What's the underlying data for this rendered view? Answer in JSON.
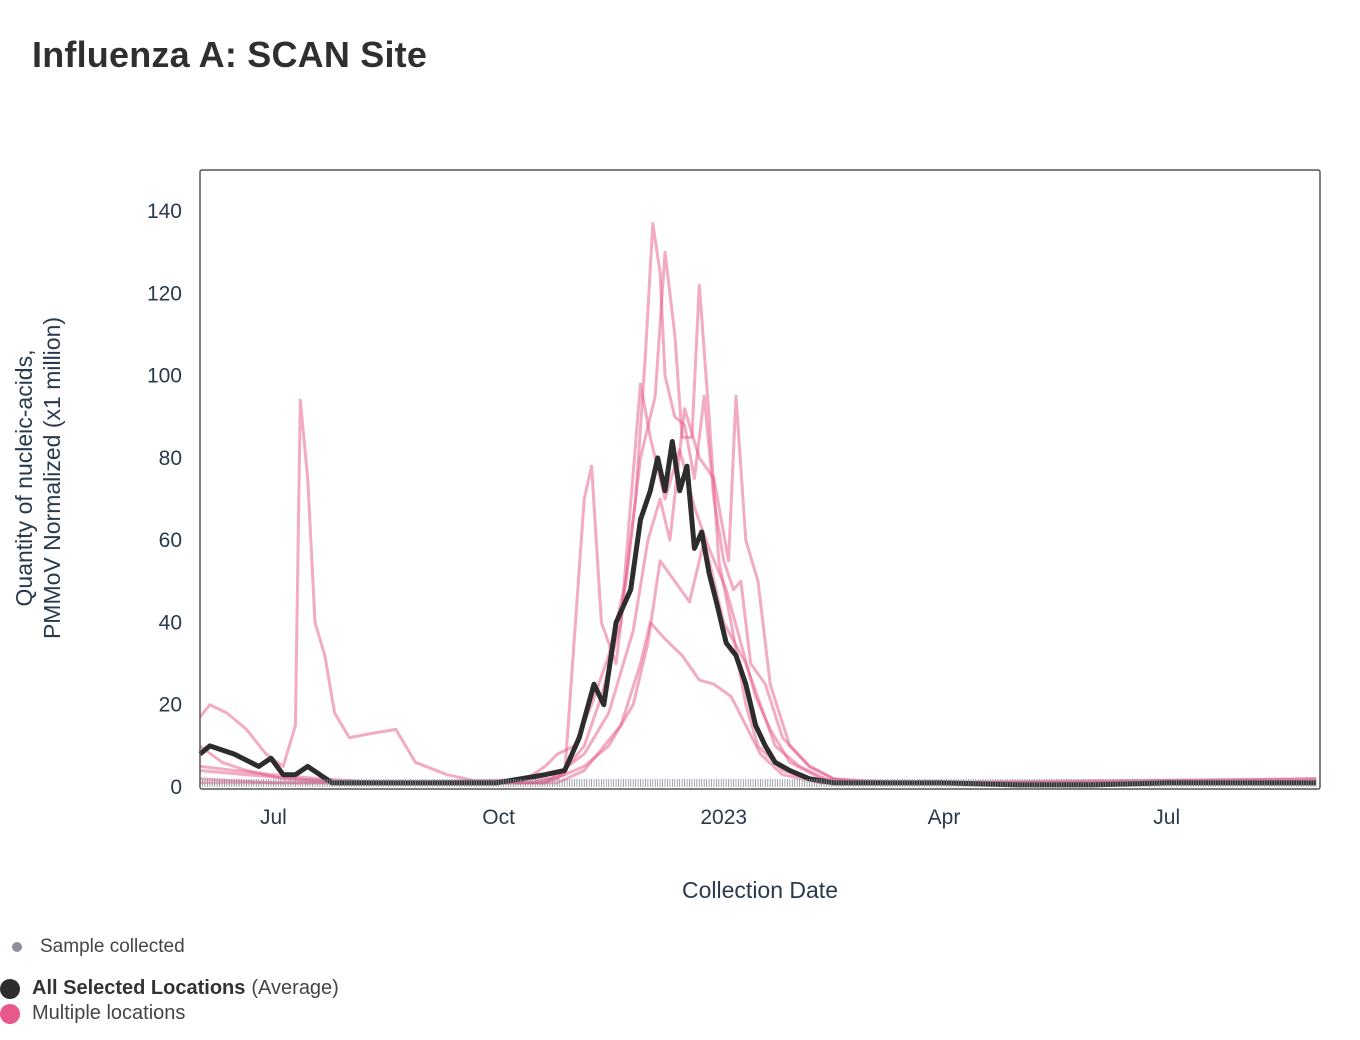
{
  "title": "Influenza A: SCAN Site",
  "colors": {
    "average": "#2d2d2d",
    "locations": "#e8588a",
    "sample_marker": "#8a8f99",
    "axis_text": "#2a3a4e"
  },
  "legend": {
    "sample_label": "Sample collected",
    "average_label_bold": "All Selected Locations",
    "average_label_suffix": "(Average)",
    "multi_label": "Multiple locations"
  },
  "chart_data": {
    "type": "line",
    "xlabel": "Collection Date",
    "ylabel_line1": "Quantity of nucleic-acids,",
    "ylabel_line2": "PMMoV Normalized (x1 million)",
    "xlim": [
      "2022-06-01",
      "2023-08-31"
    ],
    "ylim": [
      0,
      150
    ],
    "y_ticks": [
      0,
      20,
      40,
      60,
      80,
      100,
      120,
      140
    ],
    "x_ticks": [
      {
        "date": "2022-07-01",
        "label": "Jul"
      },
      {
        "date": "2022-10-01",
        "label": "Oct"
      },
      {
        "date": "2023-01-01",
        "label": "2023"
      },
      {
        "date": "2023-04-01",
        "label": "Apr"
      },
      {
        "date": "2023-07-01",
        "label": "Jul"
      }
    ],
    "grid": false,
    "legend_position": "bottom-left",
    "series": [
      {
        "name": "All Selected Locations",
        "kind": "average",
        "points": [
          [
            "2022-06-01",
            8
          ],
          [
            "2022-06-05",
            10
          ],
          [
            "2022-06-15",
            8
          ],
          [
            "2022-06-25",
            5
          ],
          [
            "2022-06-30",
            7
          ],
          [
            "2022-07-05",
            3
          ],
          [
            "2022-07-10",
            3
          ],
          [
            "2022-07-15",
            5
          ],
          [
            "2022-07-20",
            3
          ],
          [
            "2022-07-25",
            1
          ],
          [
            "2022-08-10",
            1
          ],
          [
            "2022-09-01",
            1
          ],
          [
            "2022-09-30",
            1
          ],
          [
            "2022-10-10",
            2
          ],
          [
            "2022-10-20",
            3
          ],
          [
            "2022-10-28",
            4
          ],
          [
            "2022-11-03",
            12
          ],
          [
            "2022-11-09",
            25
          ],
          [
            "2022-11-13",
            20
          ],
          [
            "2022-11-18",
            40
          ],
          [
            "2022-11-24",
            48
          ],
          [
            "2022-11-28",
            65
          ],
          [
            "2022-12-02",
            72
          ],
          [
            "2022-12-05",
            80
          ],
          [
            "2022-12-08",
            72
          ],
          [
            "2022-12-11",
            84
          ],
          [
            "2022-12-14",
            72
          ],
          [
            "2022-12-17",
            78
          ],
          [
            "2022-12-20",
            58
          ],
          [
            "2022-12-23",
            62
          ],
          [
            "2022-12-26",
            52
          ],
          [
            "2022-12-29",
            45
          ],
          [
            "2023-01-02",
            35
          ],
          [
            "2023-01-06",
            32
          ],
          [
            "2023-01-10",
            25
          ],
          [
            "2023-01-14",
            15
          ],
          [
            "2023-01-18",
            10
          ],
          [
            "2023-01-22",
            6
          ],
          [
            "2023-01-28",
            4
          ],
          [
            "2023-02-05",
            2
          ],
          [
            "2023-02-15",
            1
          ],
          [
            "2023-03-01",
            1
          ],
          [
            "2023-04-01",
            1
          ],
          [
            "2023-05-01",
            0.5
          ],
          [
            "2023-06-01",
            0.5
          ],
          [
            "2023-07-01",
            1
          ],
          [
            "2023-08-31",
            1
          ]
        ]
      },
      {
        "name": "Multiple locations",
        "kind": "location",
        "points": [
          [
            "2022-06-01",
            17
          ],
          [
            "2022-06-05",
            20
          ],
          [
            "2022-06-12",
            18
          ],
          [
            "2022-06-20",
            14
          ],
          [
            "2022-06-28",
            8
          ],
          [
            "2022-07-05",
            5
          ],
          [
            "2022-07-10",
            15
          ],
          [
            "2022-07-12",
            94
          ],
          [
            "2022-07-15",
            75
          ],
          [
            "2022-07-18",
            40
          ],
          [
            "2022-07-22",
            32
          ],
          [
            "2022-07-26",
            18
          ],
          [
            "2022-08-01",
            12
          ],
          [
            "2022-08-10",
            13
          ],
          [
            "2022-08-20",
            14
          ],
          [
            "2022-08-28",
            6
          ],
          [
            "2022-09-10",
            3
          ],
          [
            "2022-09-25",
            1
          ],
          [
            "2022-10-10",
            1
          ],
          [
            "2022-10-20",
            5
          ],
          [
            "2022-10-25",
            8
          ],
          [
            "2022-11-01",
            10
          ],
          [
            "2022-11-08",
            20
          ],
          [
            "2022-11-15",
            32
          ],
          [
            "2022-11-22",
            50
          ],
          [
            "2022-11-26",
            70
          ],
          [
            "2022-11-30",
            105
          ],
          [
            "2022-12-03",
            137
          ],
          [
            "2022-12-06",
            125
          ],
          [
            "2022-12-08",
            100
          ],
          [
            "2022-12-12",
            90
          ],
          [
            "2022-12-16",
            88
          ],
          [
            "2022-12-20",
            75
          ],
          [
            "2022-12-24",
            95
          ],
          [
            "2022-12-28",
            70
          ],
          [
            "2023-01-01",
            55
          ],
          [
            "2023-01-05",
            48
          ],
          [
            "2023-01-08",
            50
          ],
          [
            "2023-01-12",
            30
          ],
          [
            "2023-01-18",
            25
          ],
          [
            "2023-01-25",
            12
          ],
          [
            "2023-02-05",
            5
          ],
          [
            "2023-02-15",
            2
          ],
          [
            "2023-03-01",
            1
          ],
          [
            "2023-05-01",
            1
          ],
          [
            "2023-08-31",
            2
          ]
        ]
      },
      {
        "name": "Multiple locations",
        "kind": "location",
        "points": [
          [
            "2022-06-01",
            10
          ],
          [
            "2022-06-10",
            6
          ],
          [
            "2022-06-20",
            4
          ],
          [
            "2022-07-05",
            2
          ],
          [
            "2022-08-01",
            1
          ],
          [
            "2022-10-15",
            1
          ],
          [
            "2022-10-28",
            3
          ],
          [
            "2022-11-05",
            70
          ],
          [
            "2022-11-08",
            78
          ],
          [
            "2022-11-12",
            40
          ],
          [
            "2022-11-18",
            30
          ],
          [
            "2022-11-28",
            80
          ],
          [
            "2022-12-04",
            95
          ],
          [
            "2022-12-08",
            130
          ],
          [
            "2022-12-12",
            110
          ],
          [
            "2022-12-15",
            85
          ],
          [
            "2022-12-19",
            85
          ],
          [
            "2022-12-22",
            122
          ],
          [
            "2022-12-26",
            90
          ],
          [
            "2022-12-30",
            55
          ],
          [
            "2023-01-04",
            40
          ],
          [
            "2023-01-10",
            20
          ],
          [
            "2023-01-15",
            10
          ],
          [
            "2023-01-25",
            4
          ],
          [
            "2023-02-10",
            1
          ],
          [
            "2023-04-01",
            1
          ],
          [
            "2023-08-31",
            1
          ]
        ]
      },
      {
        "name": "Multiple locations",
        "kind": "location",
        "points": [
          [
            "2022-06-01",
            4
          ],
          [
            "2022-06-20",
            3
          ],
          [
            "2022-07-10",
            2
          ],
          [
            "2022-08-01",
            1
          ],
          [
            "2022-10-20",
            1
          ],
          [
            "2022-11-05",
            8
          ],
          [
            "2022-11-15",
            18
          ],
          [
            "2022-11-25",
            38
          ],
          [
            "2022-12-01",
            60
          ],
          [
            "2022-12-06",
            70
          ],
          [
            "2022-12-10",
            60
          ],
          [
            "2022-12-16",
            92
          ],
          [
            "2022-12-22",
            80
          ],
          [
            "2022-12-28",
            75
          ],
          [
            "2023-01-03",
            55
          ],
          [
            "2023-01-06",
            95
          ],
          [
            "2023-01-10",
            60
          ],
          [
            "2023-01-15",
            50
          ],
          [
            "2023-01-20",
            25
          ],
          [
            "2023-01-28",
            10
          ],
          [
            "2023-02-05",
            5
          ],
          [
            "2023-02-15",
            2
          ],
          [
            "2023-03-15",
            1
          ],
          [
            "2023-08-31",
            1
          ]
        ]
      },
      {
        "name": "Multiple locations",
        "kind": "location",
        "points": [
          [
            "2022-06-01",
            2
          ],
          [
            "2022-07-01",
            1
          ],
          [
            "2022-10-20",
            1
          ],
          [
            "2022-11-05",
            5
          ],
          [
            "2022-11-15",
            10
          ],
          [
            "2022-11-25",
            20
          ],
          [
            "2022-12-01",
            35
          ],
          [
            "2022-12-06",
            55
          ],
          [
            "2022-12-12",
            50
          ],
          [
            "2022-12-18",
            45
          ],
          [
            "2022-12-24",
            60
          ],
          [
            "2023-01-01",
            40
          ],
          [
            "2023-01-10",
            30
          ],
          [
            "2023-01-16",
            20
          ],
          [
            "2023-01-22",
            10
          ],
          [
            "2023-02-01",
            5
          ],
          [
            "2023-02-15",
            1
          ],
          [
            "2023-08-31",
            1
          ]
        ]
      },
      {
        "name": "Multiple locations",
        "kind": "location",
        "points": [
          [
            "2022-06-01",
            1
          ],
          [
            "2022-08-01",
            1
          ],
          [
            "2022-10-25",
            1
          ],
          [
            "2022-11-05",
            4
          ],
          [
            "2022-11-20",
            15
          ],
          [
            "2022-11-28",
            30
          ],
          [
            "2022-12-02",
            40
          ],
          [
            "2022-12-08",
            36
          ],
          [
            "2022-12-15",
            32
          ],
          [
            "2022-12-22",
            26
          ],
          [
            "2022-12-28",
            25
          ],
          [
            "2023-01-04",
            22
          ],
          [
            "2023-01-10",
            15
          ],
          [
            "2023-01-16",
            8
          ],
          [
            "2023-01-25",
            3
          ],
          [
            "2023-02-10",
            1
          ],
          [
            "2023-08-31",
            1
          ]
        ]
      },
      {
        "name": "Multiple locations",
        "kind": "location",
        "points": [
          [
            "2022-06-01",
            5
          ],
          [
            "2022-06-15",
            4
          ],
          [
            "2022-07-01",
            3
          ],
          [
            "2022-07-20",
            2
          ],
          [
            "2022-08-15",
            1
          ],
          [
            "2022-10-25",
            2
          ],
          [
            "2022-11-05",
            10
          ],
          [
            "2022-11-12",
            22
          ],
          [
            "2022-11-20",
            40
          ],
          [
            "2022-11-28",
            98
          ],
          [
            "2022-12-02",
            85
          ],
          [
            "2022-12-08",
            70
          ],
          [
            "2022-12-14",
            82
          ],
          [
            "2022-12-20",
            68
          ],
          [
            "2022-12-26",
            58
          ],
          [
            "2023-01-02",
            48
          ],
          [
            "2023-01-08",
            35
          ],
          [
            "2023-01-14",
            22
          ],
          [
            "2023-01-20",
            14
          ],
          [
            "2023-01-28",
            6
          ],
          [
            "2023-02-10",
            2
          ],
          [
            "2023-03-01",
            1
          ],
          [
            "2023-08-31",
            2
          ]
        ]
      }
    ]
  }
}
